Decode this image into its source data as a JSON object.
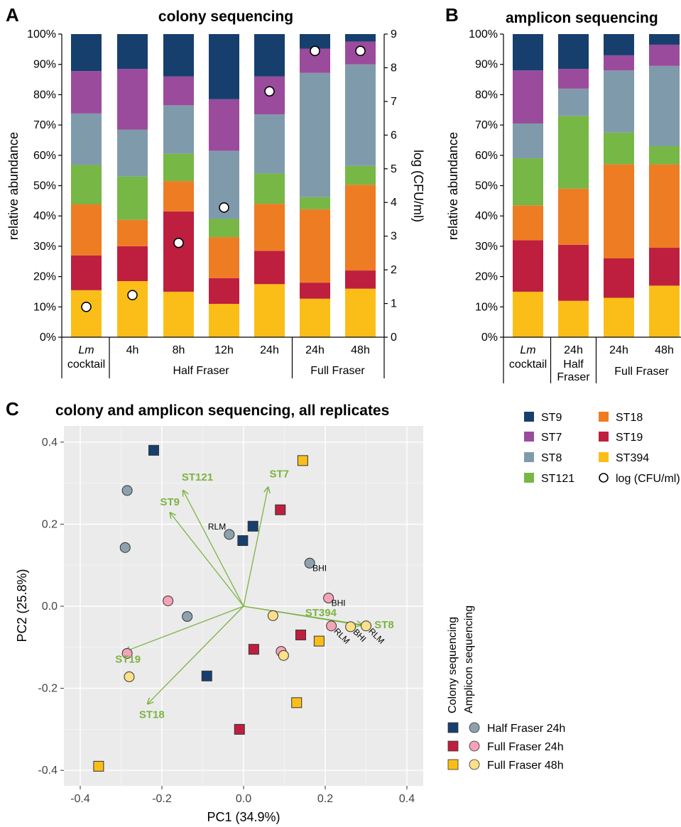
{
  "colors": {
    "ST9": "#163f6e",
    "ST7": "#9b4b9c",
    "ST8": "#7f9bab",
    "ST121": "#76b745",
    "ST18": "#ee7c23",
    "ST19": "#be1f3e",
    "ST394": "#fbbe19",
    "arrow": "#7cb342",
    "panel_bg": "#ebebeb",
    "hf_circle": "#8da2ae",
    "ff24_circle": "#f4a3b8",
    "ff48_circle": "#fde08a"
  },
  "chart_data": [
    {
      "id": "A",
      "type": "bar",
      "letter": "A",
      "title": "colony sequencing",
      "ylabel": "relative abundance",
      "ylabel_right": "log (CFU/ml)",
      "ylim": [
        0,
        100
      ],
      "ylim_right": [
        0,
        9
      ],
      "yticks": [
        "0%",
        "10%",
        "20%",
        "30%",
        "40%",
        "50%",
        "60%",
        "70%",
        "80%",
        "90%",
        "100%"
      ],
      "yticks_right": [
        "0",
        "1",
        "2",
        "3",
        "4",
        "5",
        "6",
        "7",
        "8",
        "9"
      ],
      "categories": [
        "cocktail",
        "4h",
        "8h",
        "12h",
        "24h",
        "24h",
        "48h"
      ],
      "category_prefix": [
        "Lm",
        "",
        "",
        "",
        "",
        "",
        ""
      ],
      "groups": [
        {
          "label": "",
          "from": 0,
          "to": 0
        },
        {
          "label": "Half Fraser",
          "from": 1,
          "to": 4
        },
        {
          "label": "Full Fraser",
          "from": 5,
          "to": 6
        }
      ],
      "stack_order": [
        "ST394",
        "ST19",
        "ST18",
        "ST121",
        "ST8",
        "ST7",
        "ST9"
      ],
      "series": [
        {
          "name": "ST394",
          "values": [
            15.5,
            18.5,
            15,
            11,
            17.5,
            12.7,
            16
          ]
        },
        {
          "name": "ST19",
          "values": [
            11.5,
            11.5,
            26.5,
            8.5,
            11,
            5.3,
            6
          ]
        },
        {
          "name": "ST18",
          "values": [
            16.8,
            8.7,
            10,
            13.5,
            15.5,
            24.2,
            28.3
          ]
        },
        {
          "name": "ST121",
          "values": [
            13,
            14.3,
            9,
            6,
            10,
            4,
            6.2
          ]
        },
        {
          "name": "ST8",
          "values": [
            17,
            15.5,
            16,
            22.5,
            19.5,
            41,
            33.5
          ]
        },
        {
          "name": "ST7",
          "values": [
            14,
            20,
            9.5,
            17,
            12.5,
            8,
            7.5
          ]
        },
        {
          "name": "ST9",
          "values": [
            12.2,
            11.5,
            14,
            21.5,
            14,
            4.8,
            2.5
          ]
        }
      ],
      "log_cfu": [
        0.9,
        1.25,
        2.8,
        3.85,
        7.3,
        8.5,
        8.5
      ]
    },
    {
      "id": "B",
      "type": "bar",
      "letter": "B",
      "title": "amplicon sequencing",
      "ylabel": "relative abundance",
      "ylim": [
        0,
        100
      ],
      "yticks": [
        "0%",
        "10%",
        "20%",
        "30%",
        "40%",
        "50%",
        "60%",
        "70%",
        "80%",
        "90%",
        "100%"
      ],
      "categories": [
        "cocktail",
        "24h",
        "24h",
        "48h"
      ],
      "category_prefix": [
        "Lm",
        "",
        "",
        ""
      ],
      "groups": [
        {
          "label": "",
          "from": 0,
          "to": 0
        },
        {
          "label": "Half Fraser",
          "from": 1,
          "to": 1
        },
        {
          "label": "Full Fraser",
          "from": 2,
          "to": 3
        }
      ],
      "stack_order": [
        "ST394",
        "ST19",
        "ST18",
        "ST121",
        "ST8",
        "ST7",
        "ST9"
      ],
      "series": [
        {
          "name": "ST394",
          "values": [
            15,
            12,
            13,
            17
          ]
        },
        {
          "name": "ST19",
          "values": [
            17,
            18.5,
            13,
            12.5
          ]
        },
        {
          "name": "ST18",
          "values": [
            11.5,
            18.5,
            31,
            27.5
          ]
        },
        {
          "name": "ST121",
          "values": [
            15.5,
            24,
            10.5,
            6
          ]
        },
        {
          "name": "ST8",
          "values": [
            11.5,
            9,
            20.5,
            26.5
          ]
        },
        {
          "name": "ST7",
          "values": [
            17.5,
            6.5,
            5,
            7
          ]
        },
        {
          "name": "ST9",
          "values": [
            12,
            11.5,
            7,
            3.5
          ]
        }
      ]
    },
    {
      "id": "C",
      "type": "scatter",
      "letter": "C",
      "title": "colony and amplicon sequencing, all replicates",
      "xlabel": "PC1 (34.9%)",
      "ylabel": "PC2 (25.8%)",
      "xlim": [
        -0.44,
        0.44
      ],
      "ylim": [
        -0.44,
        0.42
      ],
      "xticks": [
        -0.4,
        -0.2,
        0.0,
        0.2,
        0.4
      ],
      "xtick_labels": [
        "-0.4",
        "-0.2",
        "0.0",
        "0.2",
        "0.4"
      ],
      "yticks": [
        -0.4,
        -0.2,
        0.0,
        0.2,
        0.4
      ],
      "ytick_labels": [
        "-0.4",
        "-0.2",
        "0.0",
        "0.2",
        "0.4"
      ],
      "grid": true,
      "points": [
        {
          "x": -0.22,
          "y": 0.38,
          "shape": "square",
          "group": "hf"
        },
        {
          "x": 0.023,
          "y": 0.195,
          "shape": "square",
          "group": "hf"
        },
        {
          "x": -0.002,
          "y": 0.16,
          "shape": "square",
          "group": "hf"
        },
        {
          "x": -0.09,
          "y": -0.17,
          "shape": "square",
          "group": "hf"
        },
        {
          "x": 0.09,
          "y": 0.235,
          "shape": "square",
          "group": "ff24"
        },
        {
          "x": 0.14,
          "y": -0.07,
          "shape": "square",
          "group": "ff24"
        },
        {
          "x": 0.025,
          "y": -0.105,
          "shape": "square",
          "group": "ff24"
        },
        {
          "x": -0.01,
          "y": -0.3,
          "shape": "square",
          "group": "ff24"
        },
        {
          "x": 0.145,
          "y": 0.355,
          "shape": "square",
          "group": "ff48"
        },
        {
          "x": 0.185,
          "y": -0.085,
          "shape": "square",
          "group": "ff48"
        },
        {
          "x": 0.13,
          "y": -0.235,
          "shape": "square",
          "group": "ff48"
        },
        {
          "x": -0.355,
          "y": -0.39,
          "shape": "square",
          "group": "ff48"
        },
        {
          "x": -0.285,
          "y": 0.282,
          "shape": "circle",
          "group": "hf"
        },
        {
          "x": -0.29,
          "y": 0.143,
          "shape": "circle",
          "group": "hf"
        },
        {
          "x": -0.035,
          "y": 0.175,
          "shape": "circle",
          "group": "hf",
          "label": "RLM"
        },
        {
          "x": 0.162,
          "y": 0.105,
          "shape": "circle",
          "group": "hf",
          "label": "BHI"
        },
        {
          "x": -0.138,
          "y": -0.025,
          "shape": "circle",
          "group": "hf"
        },
        {
          "x": -0.185,
          "y": 0.013,
          "shape": "circle",
          "group": "ff24"
        },
        {
          "x": 0.208,
          "y": 0.02,
          "shape": "circle",
          "group": "ff24",
          "label": "BHI"
        },
        {
          "x": 0.215,
          "y": -0.048,
          "shape": "circle",
          "group": "ff24",
          "label": "RLM"
        },
        {
          "x": 0.092,
          "y": -0.11,
          "shape": "circle",
          "group": "ff24"
        },
        {
          "x": -0.285,
          "y": -0.115,
          "shape": "circle",
          "group": "ff24"
        },
        {
          "x": 0.072,
          "y": -0.023,
          "shape": "circle",
          "group": "ff48"
        },
        {
          "x": 0.262,
          "y": -0.05,
          "shape": "circle",
          "group": "ff48",
          "label": "BHI"
        },
        {
          "x": 0.3,
          "y": -0.048,
          "shape": "circle",
          "group": "ff48",
          "label": "RLM"
        },
        {
          "x": 0.098,
          "y": -0.12,
          "shape": "circle",
          "group": "ff48"
        },
        {
          "x": -0.28,
          "y": -0.172,
          "shape": "circle",
          "group": "ff48"
        }
      ],
      "loadings": [
        {
          "name": "ST121",
          "x": -0.148,
          "y": 0.282
        },
        {
          "name": "ST9",
          "x": -0.18,
          "y": 0.228
        },
        {
          "name": "ST7",
          "x": 0.06,
          "y": 0.29
        },
        {
          "name": "ST394",
          "x": 0.29,
          "y": -0.045
        },
        {
          "name": "ST8",
          "x": 0.31,
          "y": -0.05
        },
        {
          "name": "ST19",
          "x": -0.29,
          "y": -0.11
        },
        {
          "name": "ST18",
          "x": -0.235,
          "y": -0.238
        }
      ]
    }
  ],
  "legend_strains": [
    {
      "key": "ST9",
      "label": "ST9"
    },
    {
      "key": "ST18",
      "label": "ST18"
    },
    {
      "key": "ST7",
      "label": "ST7"
    },
    {
      "key": "ST19",
      "label": "ST19"
    },
    {
      "key": "ST8",
      "label": "ST8"
    },
    {
      "key": "ST394",
      "label": "ST394"
    },
    {
      "key": "ST121",
      "label": "ST121"
    },
    {
      "key": "cfu",
      "label": "log (CFU/ml)"
    }
  ],
  "legend_methods": {
    "colony": "Colony sequencing",
    "amplicon": "Amplicon sequencing",
    "groups": [
      {
        "key": "hf",
        "label": "Half Fraser 24h"
      },
      {
        "key": "ff24",
        "label": "Full Fraser 24h"
      },
      {
        "key": "ff48",
        "label": "Full Fraser 48h"
      }
    ]
  }
}
